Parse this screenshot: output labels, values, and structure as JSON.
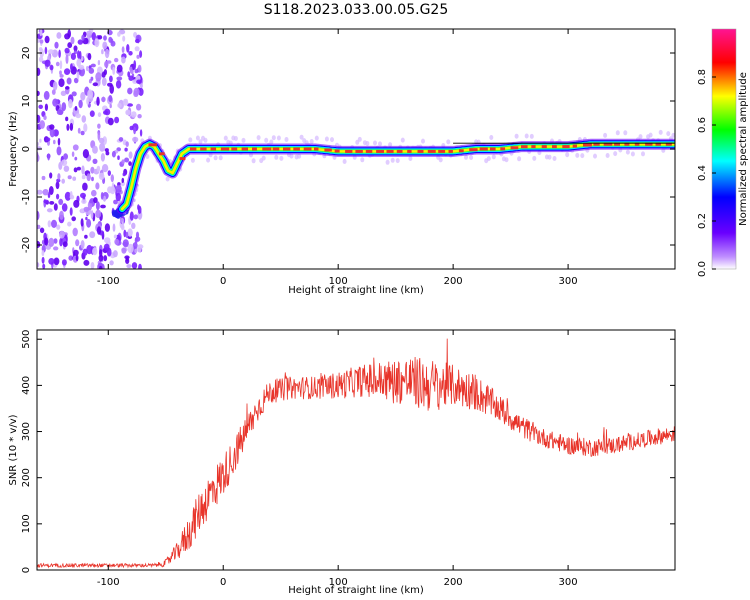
{
  "title": "S118.2023.033.00.05.G25",
  "chart_data": [
    {
      "type": "heatmap",
      "xlabel": "Height of straight line (km)",
      "ylabel": "Frequency (Hz)",
      "xlim": [
        -162,
        393
      ],
      "ylim": [
        -25,
        25
      ],
      "x_ticks": [
        -100,
        0,
        100,
        200,
        300
      ],
      "y_ticks": [
        -20,
        -10,
        0,
        10,
        20
      ],
      "grid": false,
      "colorbar": {
        "label": "Normalized spectral amplitude",
        "range": [
          0,
          1
        ],
        "ticks": [
          "0.0",
          "0.2",
          "0.4",
          "0.6",
          "0.8"
        ],
        "colors": [
          "#ffffff",
          "#b070ff",
          "#0000ff",
          "#00ffff",
          "#00ff00",
          "#ffff00",
          "#ff0000",
          "#ff1493"
        ]
      },
      "noise_region_x": [
        -162,
        -77
      ],
      "ridge": {
        "name": "peak frequency",
        "x": [
          -88,
          -84,
          -80,
          -76,
          -72,
          -68,
          -64,
          -60,
          -56,
          -52,
          -48,
          -44,
          -40,
          -36,
          -30,
          -20,
          -10,
          0,
          20,
          40,
          60,
          80,
          100,
          120,
          140,
          150,
          160,
          180,
          200,
          220,
          240,
          260,
          280,
          300,
          320,
          340,
          360,
          380,
          393
        ],
        "y": [
          -12.5,
          -11.5,
          -8,
          -4,
          -1,
          0.5,
          1,
          0.5,
          -1,
          -2.5,
          -4.5,
          -5,
          -3,
          -1,
          0,
          0,
          0,
          0,
          0,
          0,
          0,
          0,
          -0.5,
          -0.5,
          -0.5,
          -0.5,
          -0.5,
          -0.5,
          -0.5,
          0,
          0,
          0.5,
          0.5,
          0.5,
          1,
          1,
          1,
          1,
          1
        ]
      },
      "ridge_color": "#e8342a",
      "tail_color": "#2020ee"
    },
    {
      "type": "line",
      "xlabel": "Height of straight line (km)",
      "ylabel": "SNR (10 * v/v)",
      "xlim": [
        -162,
        393
      ],
      "ylim": [
        0,
        520
      ],
      "x_ticks": [
        -100,
        0,
        100,
        200,
        300
      ],
      "y_ticks": [
        0,
        100,
        200,
        300,
        400,
        500
      ],
      "grid": false,
      "series": [
        {
          "color": "#e8342a",
          "x": [
            -162,
            -100,
            -60,
            -50,
            -40,
            -30,
            -20,
            -10,
            0,
            10,
            20,
            30,
            40,
            60,
            80,
            100,
            120,
            140,
            160,
            180,
            200,
            220,
            240,
            260,
            280,
            300,
            320,
            340,
            360,
            380,
            393
          ],
          "y": [
            10,
            10,
            10,
            15,
            40,
            80,
            130,
            170,
            205,
            250,
            300,
            350,
            385,
            395,
            395,
            400,
            410,
            410,
            410,
            400,
            400,
            385,
            350,
            310,
            285,
            270,
            265,
            270,
            280,
            290,
            295
          ],
          "noise_amplitude": [
            4,
            4,
            4,
            8,
            20,
            40,
            45,
            50,
            45,
            40,
            35,
            30,
            25,
            25,
            25,
            30,
            35,
            45,
            55,
            60,
            45,
            40,
            30,
            25,
            20,
            20,
            20,
            18,
            18,
            18,
            18
          ]
        }
      ]
    }
  ]
}
